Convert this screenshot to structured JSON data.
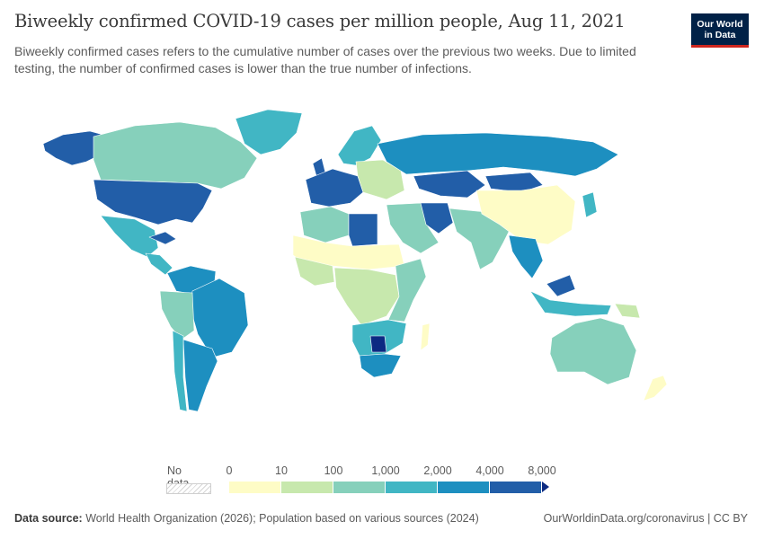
{
  "header": {
    "title": "Biweekly confirmed COVID-19 cases per million people, Aug 11, 2021",
    "subtitle": "Biweekly confirmed cases refers to the cumulative number of cases over the previous two weeks. Due to limited testing, the number of confirmed cases is lower than the true number of infections."
  },
  "logo": {
    "line1": "Our World",
    "line2": "in Data"
  },
  "legend": {
    "no_data_label": "No data",
    "ticks": [
      "0",
      "10",
      "100",
      "1,000",
      "2,000",
      "4,000",
      "8,000"
    ],
    "colors": [
      "#fefcc6",
      "#c7e8ad",
      "#86d0bb",
      "#41b6c4",
      "#1d8fc0",
      "#225ea8",
      "#0c2a82"
    ]
  },
  "regions": {
    "canada": "#86d0bb",
    "greenland": "#41b6c4",
    "alaska": "#225ea8",
    "usa": "#225ea8",
    "mexico": "#41b6c4",
    "central_america": "#41b6c4",
    "cuba": "#225ea8",
    "venezuela_colombia": "#1d8fc0",
    "brazil": "#1d8fc0",
    "peru_bolivia": "#86d0bb",
    "argentina": "#1d8fc0",
    "chile": "#41b6c4",
    "western_europe": "#225ea8",
    "uk": "#225ea8",
    "eastern_europe": "#c7e8ad",
    "scandinavia": "#41b6c4",
    "russia": "#1d8fc0",
    "kazakhstan": "#225ea8",
    "north_africa_west": "#86d0bb",
    "libya": "#225ea8",
    "sahel": "#fefcc6",
    "west_africa": "#c7e8ad",
    "central_africa": "#c7e8ad",
    "east_africa": "#86d0bb",
    "southern_africa": "#41b6c4",
    "south_africa": "#1d8fc0",
    "botswana": "#0c2a82",
    "madagascar": "#fefcc6",
    "middle_east": "#86d0bb",
    "iran": "#225ea8",
    "india": "#86d0bb",
    "china": "#fefcc6",
    "mongolia": "#225ea8",
    "japan": "#41b6c4",
    "southeast_asia": "#1d8fc0",
    "indonesia": "#41b6c4",
    "malaysia": "#225ea8",
    "australia": "#86d0bb",
    "new_zealand": "#fefcc6",
    "png": "#c7e8ad"
  },
  "footer": {
    "source_label": "Data source:",
    "source_text": "World Health Organization (2026); Population based on various sources (2024)",
    "url": "OurWorldinData.org/coronavirus | CC BY"
  }
}
